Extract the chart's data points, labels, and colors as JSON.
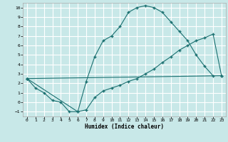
{
  "xlabel": "Humidex (Indice chaleur)",
  "xlim": [
    -0.5,
    23.5
  ],
  "ylim": [
    -1.5,
    10.5
  ],
  "xticks": [
    0,
    1,
    2,
    3,
    4,
    5,
    6,
    7,
    8,
    9,
    10,
    11,
    12,
    13,
    14,
    15,
    16,
    17,
    18,
    19,
    20,
    21,
    22,
    23
  ],
  "yticks": [
    -1,
    0,
    1,
    2,
    3,
    4,
    5,
    6,
    7,
    8,
    9,
    10
  ],
  "line_color": "#1a7070",
  "bg_color": "#c8e8e8",
  "grid_color": "#ffffff",
  "line1_x": [
    0,
    1,
    2,
    3,
    4,
    5,
    6,
    7,
    8,
    9,
    10,
    11,
    12,
    13,
    14,
    15,
    16,
    17,
    18,
    19,
    20,
    21,
    22
  ],
  "line1_y": [
    2.5,
    1.5,
    1.0,
    0.2,
    0.0,
    -1.0,
    -1.0,
    2.2,
    4.8,
    6.5,
    7.0,
    8.0,
    9.5,
    10.0,
    10.2,
    10.0,
    9.5,
    8.5,
    7.5,
    6.5,
    5.0,
    3.8,
    2.8
  ],
  "line2_x": [
    0,
    6,
    7,
    8,
    9,
    10,
    11,
    12,
    13,
    14,
    15,
    16,
    17,
    18,
    19,
    20,
    21,
    22,
    23
  ],
  "line2_y": [
    2.5,
    -1.0,
    -0.8,
    0.5,
    1.2,
    1.5,
    1.8,
    2.2,
    2.5,
    3.0,
    3.5,
    4.2,
    4.8,
    5.5,
    6.0,
    6.5,
    6.8,
    7.2,
    2.8
  ],
  "line3_x": [
    0,
    23
  ],
  "line3_y": [
    2.5,
    2.8
  ]
}
